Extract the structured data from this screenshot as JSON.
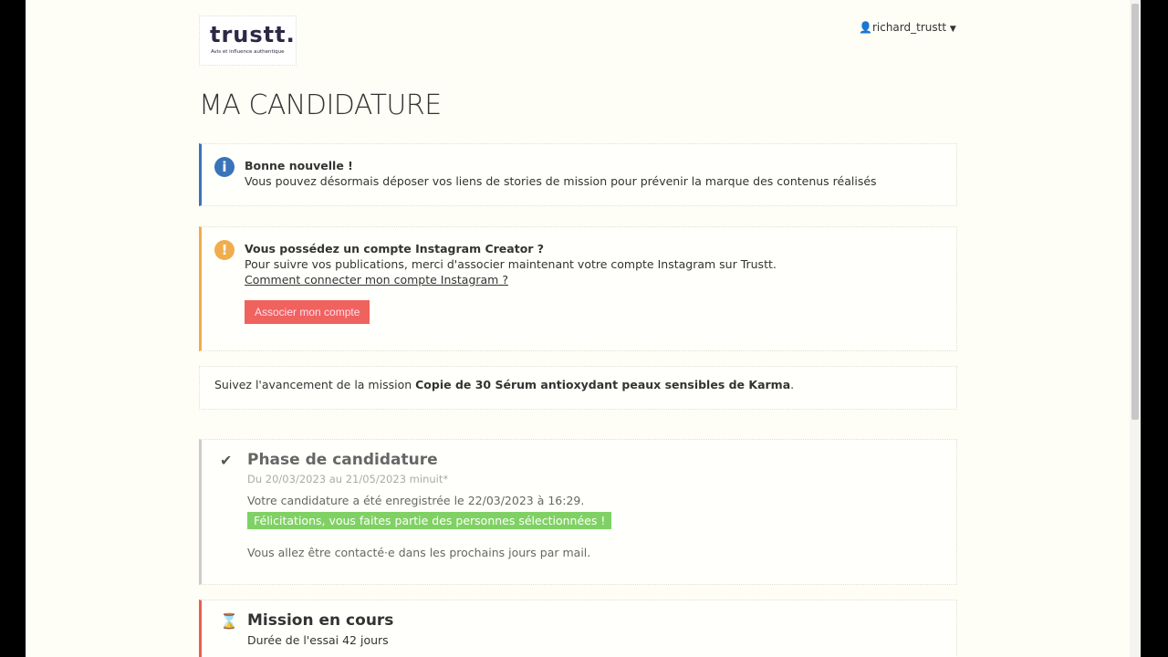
{
  "header": {
    "logo_text": "trustt.",
    "logo_tagline": "Avis et influence authentique",
    "username": "richard_trustt"
  },
  "page_title": "MA CANDIDATURE",
  "alerts": [
    {
      "icon": "info-icon",
      "color": "#3b73b9",
      "title": "Bonne nouvelle !",
      "text": "Vous pouvez désormais déposer vos liens de stories de mission pour prévenir la marque des contenus réalisés"
    },
    {
      "icon": "exclamation-icon",
      "color": "#f0ad4e",
      "title": "Vous possédez un compte Instagram Creator ?",
      "text": "Pour suivre vos publications, merci d'associer maintenant votre compte Instagram sur Trustt.",
      "link": "Comment connecter mon compte Instagram ?",
      "button": "Associer mon compte"
    }
  ],
  "mission": {
    "prefix": "Suivez l'avancement de la mission ",
    "name": "Copie de 30 Sérum antioxydant peaux sensibles de Karma",
    "suffix": "."
  },
  "phases": [
    {
      "icon": "check-icon",
      "title": "Phase de candidature",
      "dates": "Du 20/03/2023 au 21/05/2023 minuit*",
      "registered": "Votre candidature a été enregistrée le 22/03/2023 à 16:29.",
      "badge": "Félicitations, vous faites partie des personnes sélectionnées !",
      "note": "Vous allez être contacté·e dans les prochains jours par mail."
    },
    {
      "icon": "hourglass-icon",
      "title": "Mission en cours",
      "duration": "Durée de l'essai 42 jours"
    }
  ]
}
